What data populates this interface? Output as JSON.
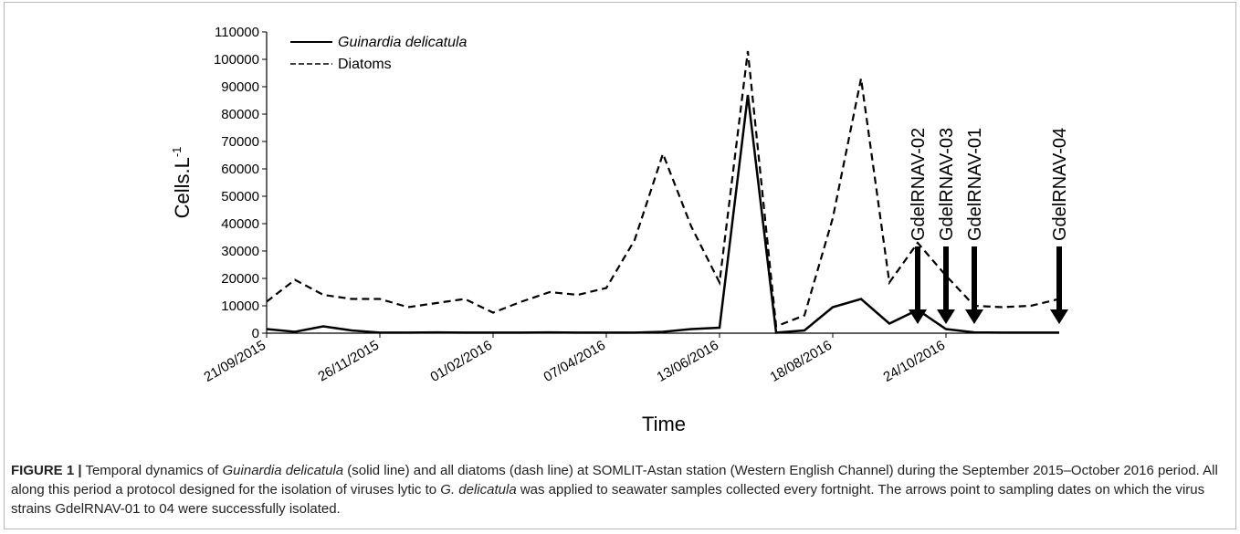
{
  "chart_data": {
    "type": "line",
    "xlabel": "Time",
    "ylabel": "Cells.L",
    "ylabel_superscript": "-1",
    "ylim": [
      0,
      110000
    ],
    "y_ticks": [
      "0",
      "10000",
      "20000",
      "30000",
      "40000",
      "50000",
      "60000",
      "70000",
      "80000",
      "90000",
      "100000",
      "110000"
    ],
    "x_tick_labels": [
      "21/09/2015",
      "26/11/2015",
      "01/02/2016",
      "07/04/2016",
      "13/06/2016",
      "18/08/2016",
      "24/10/2016"
    ],
    "x_start": "21/09/2015",
    "x_end": "24/10/2016",
    "grid": false,
    "legend_position": "top-left",
    "series": [
      {
        "name": "Guinardia delicatula",
        "style": "solid",
        "color": "#000000",
        "values": [
          1500,
          500,
          2500,
          1000,
          200,
          200,
          300,
          200,
          200,
          200,
          300,
          200,
          200,
          200,
          500,
          1500,
          2000,
          87000,
          200,
          1000,
          9500,
          12500,
          3500,
          8500,
          1500,
          300,
          200,
          200,
          200
        ]
      },
      {
        "name": "Diatoms",
        "style": "dashed",
        "color": "#000000",
        "values": [
          11500,
          19500,
          14000,
          12500,
          12500,
          9500,
          11000,
          12500,
          7500,
          11500,
          15000,
          14000,
          16500,
          34000,
          65500,
          39000,
          18500,
          103000,
          2500,
          6500,
          42000,
          93000,
          18500,
          33000,
          21000,
          10000,
          9500,
          10000,
          12500
        ]
      }
    ],
    "arrows": [
      {
        "label": "GdelRNAV-02",
        "x_index": 23
      },
      {
        "label": "GdelRNAV-03",
        "x_index": 24
      },
      {
        "label": "GdelRNAV-01",
        "x_index": 25
      },
      {
        "label": "GdelRNAV-04",
        "x_index": 28
      }
    ]
  },
  "caption": {
    "label": "FIGURE 1 |",
    "parts": [
      {
        "text": " Temporal dynamics of ",
        "italic": false
      },
      {
        "text": "Guinardia delicatula",
        "italic": true
      },
      {
        "text": " (solid line) and all diatoms (dash line) at SOMLIT-Astan station (Western English Channel) during the September 2015–October 2016 period. All along this period a protocol designed for the isolation of viruses lytic to ",
        "italic": false
      },
      {
        "text": "G. delicatula",
        "italic": true
      },
      {
        "text": " was applied to seawater samples collected every fortnight. The arrows point to sampling dates on which the virus strains GdelRNAV-01 to 04 were successfully isolated.",
        "italic": false
      }
    ]
  }
}
